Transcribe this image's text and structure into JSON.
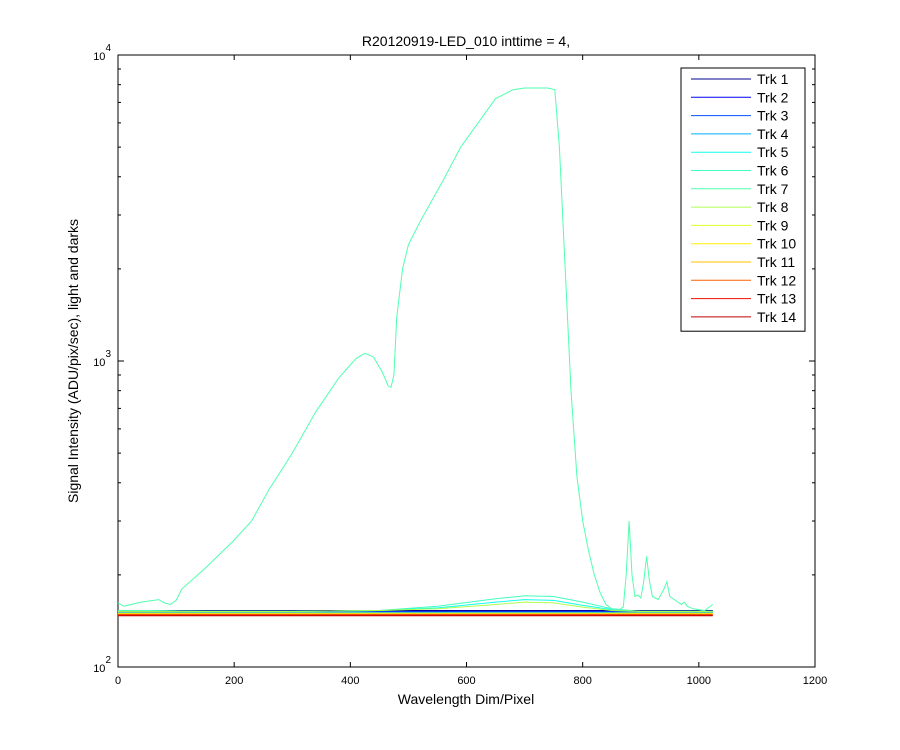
{
  "chart_data": {
    "type": "line",
    "title": "R20120919-LED_010 inttime = 4,",
    "xlabel": "Wavelength Dim/Pixel",
    "ylabel": "Signal Intensity (ADU/pix/sec), light and darks",
    "xlim": [
      0,
      1200
    ],
    "ylim": [
      100,
      10000
    ],
    "yscale": "log",
    "grid": false,
    "legend_position": "top-right",
    "x_ticks": [
      {
        "value": 0,
        "label": "0"
      },
      {
        "value": 200,
        "label": "200"
      },
      {
        "value": 400,
        "label": "400"
      },
      {
        "value": 600,
        "label": "600"
      },
      {
        "value": 800,
        "label": "800"
      },
      {
        "value": 1000,
        "label": "1000"
      },
      {
        "value": 1200,
        "label": "1200"
      }
    ],
    "y_ticks": [
      {
        "value": 100,
        "base": "10",
        "exp": "2"
      },
      {
        "value": 1000,
        "base": "10",
        "exp": "3"
      },
      {
        "value": 10000,
        "base": "10",
        "exp": "4"
      }
    ],
    "series": [
      {
        "name": "Trk 1",
        "color": "#00008F",
        "x": [
          0,
          1024
        ],
        "y": [
          153,
          153
        ]
      },
      {
        "name": "Trk 2",
        "color": "#0000EF",
        "x": [
          0,
          1024
        ],
        "y": [
          152,
          152
        ]
      },
      {
        "name": "Trk 3",
        "color": "#0050FF",
        "x": [
          0,
          1024
        ],
        "y": [
          151,
          151
        ]
      },
      {
        "name": "Trk 4",
        "color": "#00AFFF",
        "x": [
          0,
          1024
        ],
        "y": [
          151,
          151
        ]
      },
      {
        "name": "Trk 5",
        "color": "#10FFEF",
        "x": [
          0,
          50,
          150,
          300,
          450,
          550,
          650,
          700,
          750,
          800,
          850,
          900,
          1024
        ],
        "y": [
          153,
          153,
          152,
          152,
          153,
          156,
          163,
          166,
          165,
          159,
          154,
          152,
          152
        ]
      },
      {
        "name": "Trk 6",
        "color": "#40FFBF",
        "x": [
          0,
          50,
          150,
          300,
          450,
          550,
          650,
          700,
          750,
          800,
          850,
          900,
          1024
        ],
        "y": [
          153,
          153,
          152,
          152,
          153,
          158,
          167,
          171,
          170,
          163,
          155,
          152,
          152
        ]
      },
      {
        "name": "Trk 7",
        "color": "#50FFAF",
        "x": [
          0,
          10,
          40,
          70,
          80,
          90,
          100,
          110,
          150,
          200,
          230,
          260,
          300,
          340,
          380,
          410,
          425,
          440,
          455,
          465,
          470,
          475,
          480,
          490,
          500,
          520,
          560,
          590,
          620,
          650,
          680,
          700,
          740,
          752,
          760,
          770,
          780,
          790,
          800,
          810,
          820,
          830,
          840,
          850,
          860,
          870,
          875,
          880,
          885,
          890,
          895,
          900,
          905,
          910,
          915,
          920,
          930,
          940,
          945,
          950,
          960,
          970,
          975,
          980,
          990,
          1000,
          1010,
          1024
        ],
        "y": [
          162,
          158,
          163,
          166,
          162,
          160,
          165,
          180,
          210,
          260,
          300,
          380,
          500,
          680,
          880,
          1020,
          1060,
          1030,
          920,
          830,
          820,
          900,
          1400,
          2000,
          2400,
          2850,
          3900,
          5000,
          6000,
          7200,
          7700,
          7800,
          7800,
          7700,
          5000,
          2000,
          800,
          420,
          300,
          240,
          200,
          175,
          160,
          155,
          153,
          157,
          200,
          300,
          200,
          170,
          172,
          168,
          190,
          230,
          190,
          170,
          166,
          180,
          190,
          170,
          165,
          160,
          163,
          158,
          155,
          154,
          153,
          160
        ]
      },
      {
        "name": "Trk 8",
        "color": "#AFFF50",
        "x": [
          0,
          150,
          300,
          450,
          550,
          650,
          700,
          750,
          800,
          850,
          900,
          1024
        ],
        "y": [
          152,
          152,
          152,
          153,
          155,
          160,
          163,
          162,
          157,
          153,
          152,
          152
        ]
      },
      {
        "name": "Trk 9",
        "color": "#DFFF20",
        "x": [
          0,
          1024
        ],
        "y": [
          150,
          150
        ]
      },
      {
        "name": "Trk 10",
        "color": "#FFEF00",
        "x": [
          0,
          1024
        ],
        "y": [
          149,
          149
        ]
      },
      {
        "name": "Trk 11",
        "color": "#FFBF00",
        "x": [
          0,
          1024
        ],
        "y": [
          149,
          149
        ]
      },
      {
        "name": "Trk 12",
        "color": "#FF6000",
        "x": [
          0,
          1024
        ],
        "y": [
          148,
          148
        ]
      },
      {
        "name": "Trk 13",
        "color": "#EF1000",
        "x": [
          0,
          1024
        ],
        "y": [
          148,
          148
        ]
      },
      {
        "name": "Trk 14",
        "color": "#BF0000",
        "x": [
          0,
          1024
        ],
        "y": [
          147,
          147
        ]
      }
    ]
  }
}
